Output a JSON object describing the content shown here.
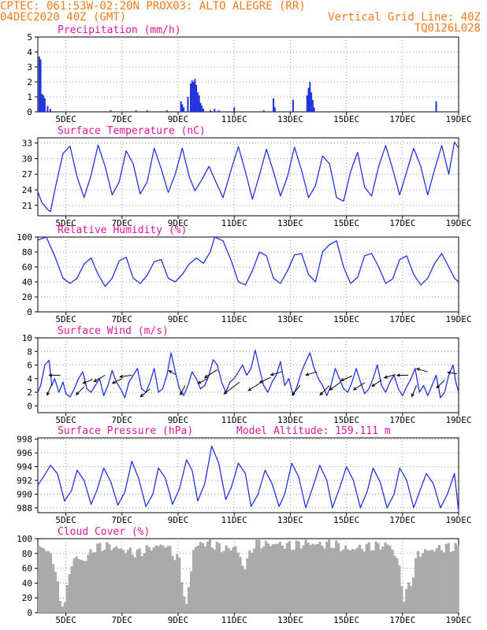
{
  "header": {
    "line1_left": "CPTEC:  061:53W-02:20N  PROX03: ALTO ALEGRE (RR)",
    "line2_left": "04DEC2020 40Z (GMT)",
    "line2_right": "Vertical Grid Line: 40Z",
    "line3_right": "TQ0126L028"
  },
  "colors": {
    "header": "#f07a1c",
    "title": "#e0169a",
    "series": "#2233dd",
    "cloud": "#aaaaaa",
    "wind_arrow": "#000000"
  },
  "x_axis": {
    "range_days": [
      4.0,
      19.0
    ],
    "tick_days": [
      5,
      7,
      9,
      11,
      13,
      15,
      17,
      19
    ],
    "tick_labels": [
      "5DEC",
      "7DEC",
      "9DEC",
      "11DEC",
      "13DEC",
      "15DEC",
      "17DEC",
      "19DEC"
    ]
  },
  "chart_data": [
    {
      "type": "bar",
      "title": "Precipitation (mm/h)",
      "ylim": [
        0,
        5
      ],
      "y_ticks": [
        0,
        1,
        2,
        3,
        4,
        5
      ],
      "x": [
        4.05,
        4.1,
        4.15,
        4.2,
        4.25,
        4.35,
        4.45,
        6.6,
        7.5,
        7.9,
        8.6,
        9.1,
        9.15,
        9.2,
        9.35,
        9.45,
        9.5,
        9.55,
        9.6,
        9.65,
        9.7,
        9.75,
        9.8,
        9.85,
        9.9,
        10.15,
        10.3,
        10.45,
        11.0,
        12.05,
        12.4,
        12.45,
        13.1,
        13.6,
        13.65,
        13.7,
        13.75,
        13.8,
        13.85,
        18.2
      ],
      "values": [
        3.7,
        3.5,
        1.2,
        1.1,
        0.9,
        0.4,
        0.2,
        0.1,
        0.1,
        0.1,
        0.1,
        0.7,
        0.5,
        0.3,
        1.0,
        1.9,
        2.1,
        2.0,
        2.2,
        1.8,
        1.3,
        1.1,
        0.6,
        0.4,
        0.2,
        0.1,
        0.2,
        0.1,
        0.3,
        0.1,
        0.9,
        0.3,
        0.8,
        1.1,
        1.6,
        2.0,
        1.3,
        0.8,
        0.3,
        0.7
      ]
    },
    {
      "type": "line",
      "title": "Surface Temperature (nC)",
      "ylim": [
        19,
        34
      ],
      "y_ticks": [
        21,
        24,
        27,
        30,
        33
      ],
      "series": [
        {
          "x": [
            4.0,
            4.15,
            4.35,
            4.45,
            4.65,
            4.9,
            5.15,
            5.4,
            5.65,
            5.9,
            6.15,
            6.4,
            6.65,
            6.9,
            7.15,
            7.4,
            7.65,
            7.9,
            8.15,
            8.4,
            8.65,
            8.9,
            9.15,
            9.4,
            9.6,
            9.85,
            10.1,
            10.35,
            10.6,
            10.9,
            11.15,
            11.4,
            11.65,
            11.9,
            12.15,
            12.4,
            12.65,
            12.9,
            13.15,
            13.4,
            13.65,
            13.9,
            14.15,
            14.4,
            14.65,
            14.9,
            15.15,
            15.4,
            15.65,
            15.9,
            16.15,
            16.4,
            16.65,
            16.9,
            17.15,
            17.4,
            17.65,
            17.9,
            18.15,
            18.4,
            18.65,
            18.85,
            19.0
          ],
          "values": [
            23.6,
            21.5,
            20.2,
            19.8,
            25.0,
            31.0,
            32.4,
            26.5,
            22.5,
            26.8,
            32.6,
            28.5,
            23.0,
            25.5,
            31.5,
            29.0,
            23.2,
            25.5,
            32.0,
            28.0,
            23.5,
            27.0,
            32.0,
            26.5,
            23.8,
            26.0,
            28.5,
            25.5,
            22.5,
            28.0,
            32.3,
            27.5,
            22.2,
            26.8,
            31.8,
            27.5,
            22.8,
            26.5,
            32.2,
            27.8,
            22.5,
            24.8,
            30.5,
            29.0,
            22.5,
            21.8,
            27.5,
            31.2,
            24.5,
            22.8,
            28.5,
            32.5,
            28.0,
            23.0,
            27.5,
            32.0,
            28.5,
            23.0,
            28.0,
            32.5,
            27.0,
            33.2,
            32.0
          ]
        }
      ]
    },
    {
      "type": "line",
      "title": "Relative Humidity (%)",
      "ylim": [
        0,
        100
      ],
      "y_ticks": [
        0,
        20,
        40,
        60,
        80,
        100
      ],
      "series": [
        {
          "x": [
            4.0,
            4.3,
            4.6,
            4.9,
            5.15,
            5.4,
            5.65,
            5.9,
            6.15,
            6.4,
            6.65,
            6.9,
            7.15,
            7.4,
            7.65,
            7.9,
            8.15,
            8.4,
            8.65,
            8.9,
            9.15,
            9.4,
            9.65,
            9.9,
            10.15,
            10.3,
            10.6,
            10.9,
            11.15,
            11.4,
            11.65,
            11.9,
            12.15,
            12.4,
            12.65,
            12.9,
            13.15,
            13.4,
            13.65,
            13.9,
            14.15,
            14.4,
            14.65,
            14.9,
            15.15,
            15.4,
            15.65,
            15.9,
            16.15,
            16.4,
            16.65,
            16.9,
            17.15,
            17.4,
            17.65,
            17.9,
            18.15,
            18.4,
            18.65,
            18.85,
            19.0
          ],
          "values": [
            96,
            100,
            75,
            45,
            38,
            45,
            64,
            72,
            50,
            34,
            45,
            68,
            73,
            45,
            38,
            49,
            67,
            70,
            45,
            40,
            50,
            64,
            72,
            65,
            80,
            100,
            95,
            68,
            40,
            36,
            55,
            80,
            75,
            45,
            38,
            55,
            76,
            78,
            50,
            40,
            80,
            90,
            95,
            60,
            38,
            46,
            75,
            78,
            60,
            38,
            44,
            70,
            75,
            50,
            36,
            45,
            65,
            78,
            60,
            45,
            40
          ]
        }
      ]
    },
    {
      "type": "line",
      "title": "Surface Wind (m/s)",
      "ylim": [
        -1,
        10
      ],
      "y_ticks": [
        0,
        2,
        4,
        6,
        8,
        10
      ],
      "series": [
        {
          "x": [
            4.0,
            4.1,
            4.25,
            4.4,
            4.5,
            4.6,
            4.75,
            4.9,
            5.0,
            5.15,
            5.3,
            5.45,
            5.6,
            5.75,
            5.9,
            6.05,
            6.2,
            6.35,
            6.5,
            6.65,
            6.8,
            6.95,
            7.1,
            7.25,
            7.4,
            7.55,
            7.7,
            7.85,
            8.0,
            8.15,
            8.3,
            8.45,
            8.6,
            8.75,
            8.9,
            9.05,
            9.2,
            9.35,
            9.5,
            9.65,
            9.8,
            9.95,
            10.1,
            10.25,
            10.4,
            10.55,
            10.7,
            10.85,
            11.0,
            11.15,
            11.3,
            11.45,
            11.6,
            11.75,
            11.9,
            12.05,
            12.2,
            12.35,
            12.5,
            12.65,
            12.8,
            12.95,
            13.1,
            13.25,
            13.4,
            13.55,
            13.7,
            13.85,
            14.0,
            14.15,
            14.3,
            14.45,
            14.6,
            14.75,
            14.9,
            15.05,
            15.2,
            15.35,
            15.5,
            15.65,
            15.8,
            15.95,
            16.1,
            16.25,
            16.4,
            16.55,
            16.7,
            16.85,
            17.0,
            17.15,
            17.3,
            17.45,
            17.6,
            17.75,
            17.9,
            18.05,
            18.2,
            18.35,
            18.5,
            18.65,
            18.8,
            18.9,
            19.0
          ],
          "values": [
            2.0,
            3.0,
            6.0,
            6.7,
            3.0,
            4.0,
            2.0,
            3.5,
            1.8,
            1.3,
            2.5,
            4.0,
            5.0,
            2.5,
            2.0,
            3.0,
            4.0,
            1.5,
            3.0,
            5.2,
            3.5,
            2.5,
            1.2,
            3.5,
            4.5,
            5.5,
            2.5,
            2.0,
            3.5,
            5.5,
            2.0,
            2.5,
            4.5,
            7.8,
            5.0,
            2.5,
            1.5,
            3.0,
            5.0,
            4.0,
            2.5,
            3.0,
            4.5,
            6.8,
            6.0,
            3.5,
            2.0,
            3.5,
            4.0,
            5.0,
            6.0,
            4.5,
            5.5,
            8.2,
            5.5,
            3.0,
            2.0,
            3.5,
            4.5,
            6.5,
            3.0,
            4.0,
            1.5,
            3.0,
            5.0,
            6.5,
            7.8,
            5.5,
            4.0,
            3.0,
            1.5,
            3.0,
            5.5,
            4.0,
            2.5,
            2.0,
            3.5,
            5.5,
            3.5,
            1.8,
            2.5,
            4.0,
            6.0,
            3.0,
            2.0,
            3.5,
            4.5,
            2.5,
            1.5,
            2.8,
            4.0,
            5.5,
            2.0,
            3.0,
            1.5,
            3.0,
            4.5,
            1.2,
            2.0,
            4.5,
            6.0,
            3.5,
            2.0
          ]
        }
      ],
      "wind_arrows": [
        {
          "x": 4.8,
          "y": 4.5,
          "dx": -14,
          "dy": 0
        },
        {
          "x": 4.5,
          "y": 3.2,
          "dx": -6,
          "dy": 14
        },
        {
          "x": 5.65,
          "y": 2.8,
          "dx": -10,
          "dy": 10
        },
        {
          "x": 6.4,
          "y": 4.5,
          "dx": -14,
          "dy": 8
        },
        {
          "x": 5.95,
          "y": 3.9,
          "dx": -12,
          "dy": 5
        },
        {
          "x": 7.35,
          "y": 4.5,
          "dx": -15,
          "dy": 2
        },
        {
          "x": 7.0,
          "y": 4.0,
          "dx": -12,
          "dy": 6
        },
        {
          "x": 8.0,
          "y": 2.5,
          "dx": -12,
          "dy": 10
        },
        {
          "x": 8.9,
          "y": 4.6,
          "dx": -8,
          "dy": -5
        },
        {
          "x": 9.25,
          "y": 3.0,
          "dx": -6,
          "dy": 12
        },
        {
          "x": 10.4,
          "y": 5.3,
          "dx": -16,
          "dy": 10
        },
        {
          "x": 10.05,
          "y": 4.0,
          "dx": -12,
          "dy": 6
        },
        {
          "x": 11.2,
          "y": 3.5,
          "dx": -20,
          "dy": 15
        },
        {
          "x": 11.9,
          "y": 3.3,
          "dx": -14,
          "dy": 9
        },
        {
          "x": 12.3,
          "y": 4.2,
          "dx": -14,
          "dy": 7
        },
        {
          "x": 12.7,
          "y": 5.0,
          "dx": -14,
          "dy": 4
        },
        {
          "x": 13.35,
          "y": 3.0,
          "dx": -10,
          "dy": 12
        },
        {
          "x": 13.95,
          "y": 5.0,
          "dx": -14,
          "dy": 4
        },
        {
          "x": 14.4,
          "y": 3.0,
          "dx": -12,
          "dy": 12
        },
        {
          "x": 14.8,
          "y": 3.5,
          "dx": -14,
          "dy": 10
        },
        {
          "x": 15.2,
          "y": 4.4,
          "dx": -14,
          "dy": 6
        },
        {
          "x": 15.65,
          "y": 3.4,
          "dx": -14,
          "dy": 9
        },
        {
          "x": 16.25,
          "y": 3.8,
          "dx": -12,
          "dy": 8
        },
        {
          "x": 16.75,
          "y": 4.6,
          "dx": -14,
          "dy": 4
        },
        {
          "x": 17.2,
          "y": 4.5,
          "dx": -14,
          "dy": 0
        },
        {
          "x": 17.5,
          "y": 3.0,
          "dx": -6,
          "dy": 14
        },
        {
          "x": 17.9,
          "y": 5.0,
          "dx": -14,
          "dy": -4
        },
        {
          "x": 18.5,
          "y": 3.8,
          "dx": -10,
          "dy": 10
        },
        {
          "x": 18.95,
          "y": 4.7,
          "dx": -12,
          "dy": -2
        }
      ]
    },
    {
      "type": "line",
      "title": "Surface Pressure (hPa)",
      "annotation": "Model Altitude: 159.111  m",
      "ylim": [
        987.3,
        998.2
      ],
      "y_ticks": [
        988,
        990,
        992,
        994,
        996,
        998
      ],
      "series": [
        {
          "x": [
            4.0,
            4.2,
            4.45,
            4.7,
            4.95,
            5.2,
            5.4,
            5.65,
            5.9,
            6.1,
            6.35,
            6.6,
            6.85,
            7.1,
            7.35,
            7.6,
            7.85,
            8.1,
            8.3,
            8.55,
            8.8,
            9.05,
            9.3,
            9.5,
            9.7,
            9.95,
            10.2,
            10.45,
            10.7,
            10.9,
            11.15,
            11.4,
            11.6,
            11.85,
            12.1,
            12.35,
            12.6,
            12.8,
            13.05,
            13.3,
            13.55,
            13.8,
            14.05,
            14.3,
            14.5,
            14.75,
            15.0,
            15.25,
            15.5,
            15.75,
            15.95,
            16.2,
            16.45,
            16.7,
            16.9,
            17.15,
            17.4,
            17.6,
            17.85,
            18.1,
            18.35,
            18.6,
            18.85,
            19.0
          ],
          "values": [
            991.3,
            992.5,
            994.2,
            993.0,
            989.0,
            990.5,
            993.5,
            992.0,
            988.5,
            990.5,
            993.8,
            991.8,
            988.4,
            990.3,
            994.8,
            992.2,
            988.2,
            990.0,
            993.8,
            992.3,
            988.5,
            990.8,
            995.0,
            993.5,
            989.0,
            991.5,
            997.0,
            994.5,
            989.2,
            991.0,
            994.5,
            993.0,
            988.2,
            990.0,
            993.5,
            991.5,
            988.2,
            990.0,
            994.5,
            992.5,
            988.0,
            991.0,
            994.2,
            992.0,
            988.0,
            990.8,
            994.0,
            992.0,
            988.0,
            990.5,
            993.8,
            991.8,
            988.0,
            990.0,
            993.8,
            992.0,
            988.0,
            990.3,
            993.0,
            991.5,
            988.0,
            990.0,
            993.0,
            987.5
          ]
        }
      ]
    },
    {
      "type": "bar",
      "title": "Cloud Cover (%)",
      "ylim": [
        0,
        100
      ],
      "y_ticks": [
        0,
        20,
        40,
        60,
        80,
        100
      ],
      "x_start": 4.0,
      "x_end": 19.0,
      "step": 0.0834,
      "key_x": [
        4.0,
        4.3,
        4.6,
        4.75,
        4.95,
        5.2,
        5.6,
        6.0,
        6.5,
        7.0,
        7.5,
        8.0,
        8.5,
        9.0,
        9.25,
        9.5,
        9.8,
        10.2,
        10.7,
        11.0,
        11.3,
        11.7,
        12.0,
        12.5,
        13.0,
        13.5,
        14.0,
        14.5,
        15.0,
        15.5,
        16.0,
        16.5,
        16.8,
        17.0,
        17.3,
        17.5,
        18.0,
        18.5,
        19.0
      ],
      "key_values": [
        90,
        85,
        60,
        10,
        20,
        75,
        70,
        88,
        90,
        85,
        80,
        88,
        92,
        70,
        5,
        85,
        95,
        92,
        85,
        90,
        60,
        95,
        92,
        93,
        90,
        94,
        92,
        93,
        85,
        88,
        90,
        92,
        70,
        20,
        45,
        80,
        85,
        88,
        88
      ]
    }
  ]
}
